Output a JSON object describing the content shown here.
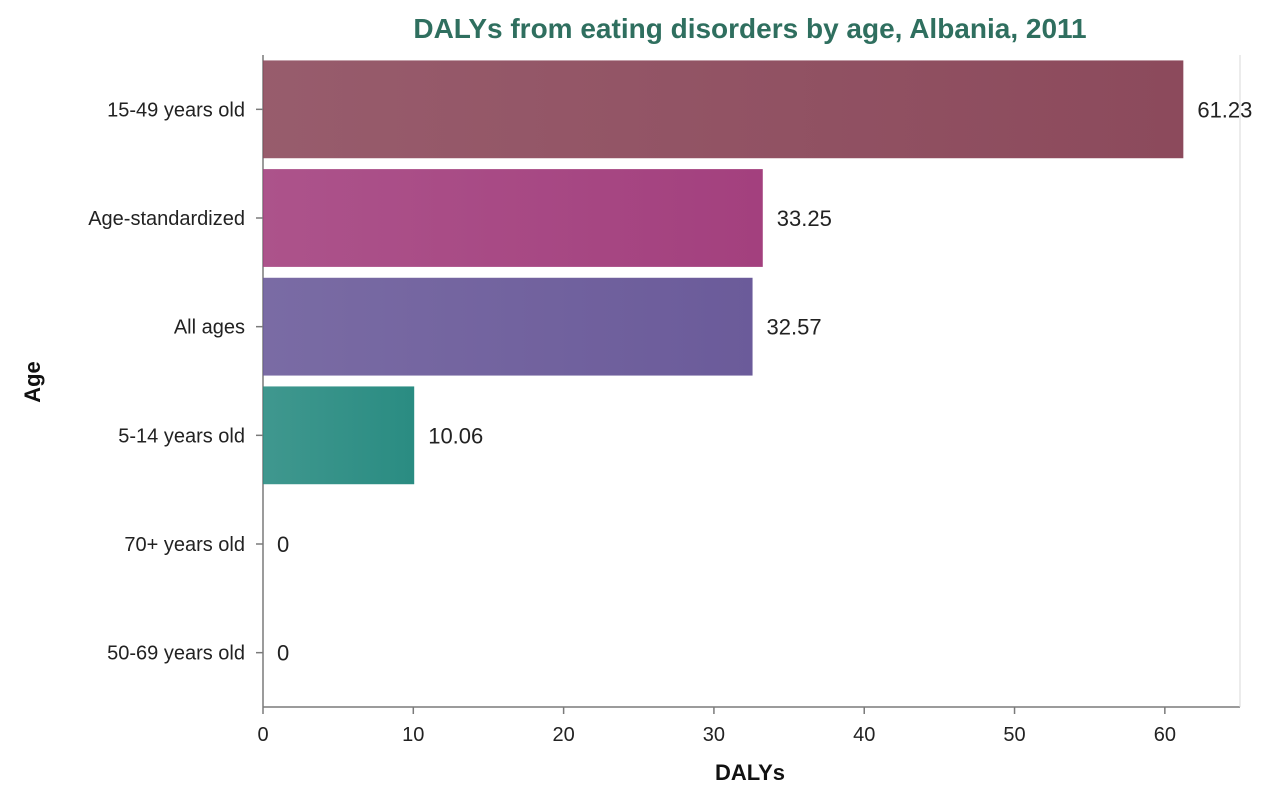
{
  "chart_data": {
    "type": "bar",
    "orientation": "horizontal",
    "title": "DALYs from eating disorders by age, Albania, 2011",
    "xlabel": "DALYs",
    "ylabel": "Age",
    "categories": [
      "15-49 years old",
      "Age-standardized",
      "All ages",
      "5-14 years old",
      "70+ years old",
      "50-69 years old"
    ],
    "values": [
      61.23,
      33.25,
      32.57,
      10.06,
      0,
      0
    ],
    "value_labels": [
      "61.23",
      "33.25",
      "32.57",
      "10.06",
      "0",
      "0"
    ],
    "xlim": [
      0,
      65
    ],
    "xticks": [
      0,
      10,
      20,
      30,
      40,
      50,
      60
    ],
    "xtick_labels": [
      "0",
      "10",
      "20",
      "30",
      "40",
      "50",
      "60"
    ],
    "grid": false,
    "colors": [
      "#8c4a5c",
      "#a3407e",
      "#6b5b9a",
      "#2a8c82",
      "#888888",
      "#888888"
    ]
  }
}
